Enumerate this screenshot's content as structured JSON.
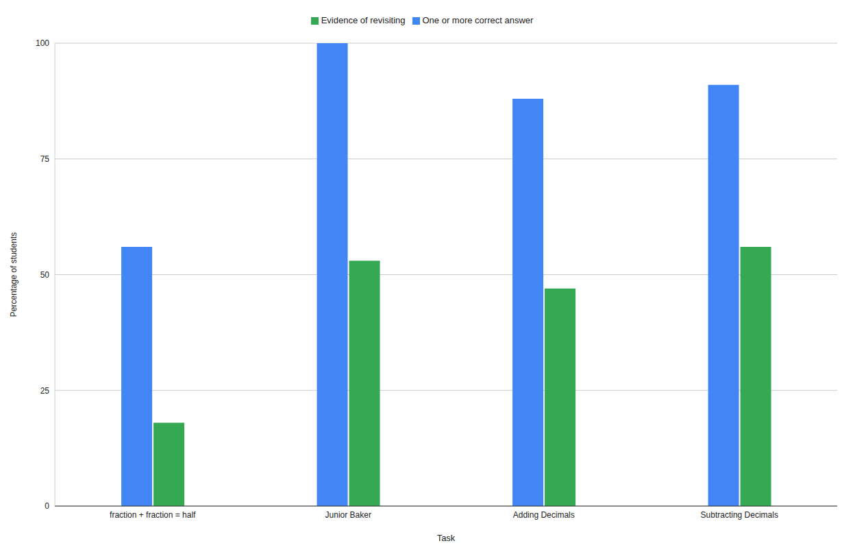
{
  "chart_data": {
    "type": "bar",
    "categories": [
      "fraction + fraction = half",
      "Junior Baker",
      "Adding Decimals",
      "Subtracting Decimals"
    ],
    "series": [
      {
        "name": "One or more correct answer",
        "color": "#4285f4",
        "values": [
          56,
          100,
          88,
          91
        ]
      },
      {
        "name": "Evidence of revisiting",
        "color": "#34a853",
        "values": [
          18,
          53,
          47,
          56
        ]
      }
    ],
    "xlabel": "Task",
    "ylabel": "Percentage of students",
    "ylim": [
      0,
      100
    ],
    "yticks": [
      0,
      25,
      50,
      75,
      100
    ],
    "grid": true,
    "legend": "top"
  }
}
